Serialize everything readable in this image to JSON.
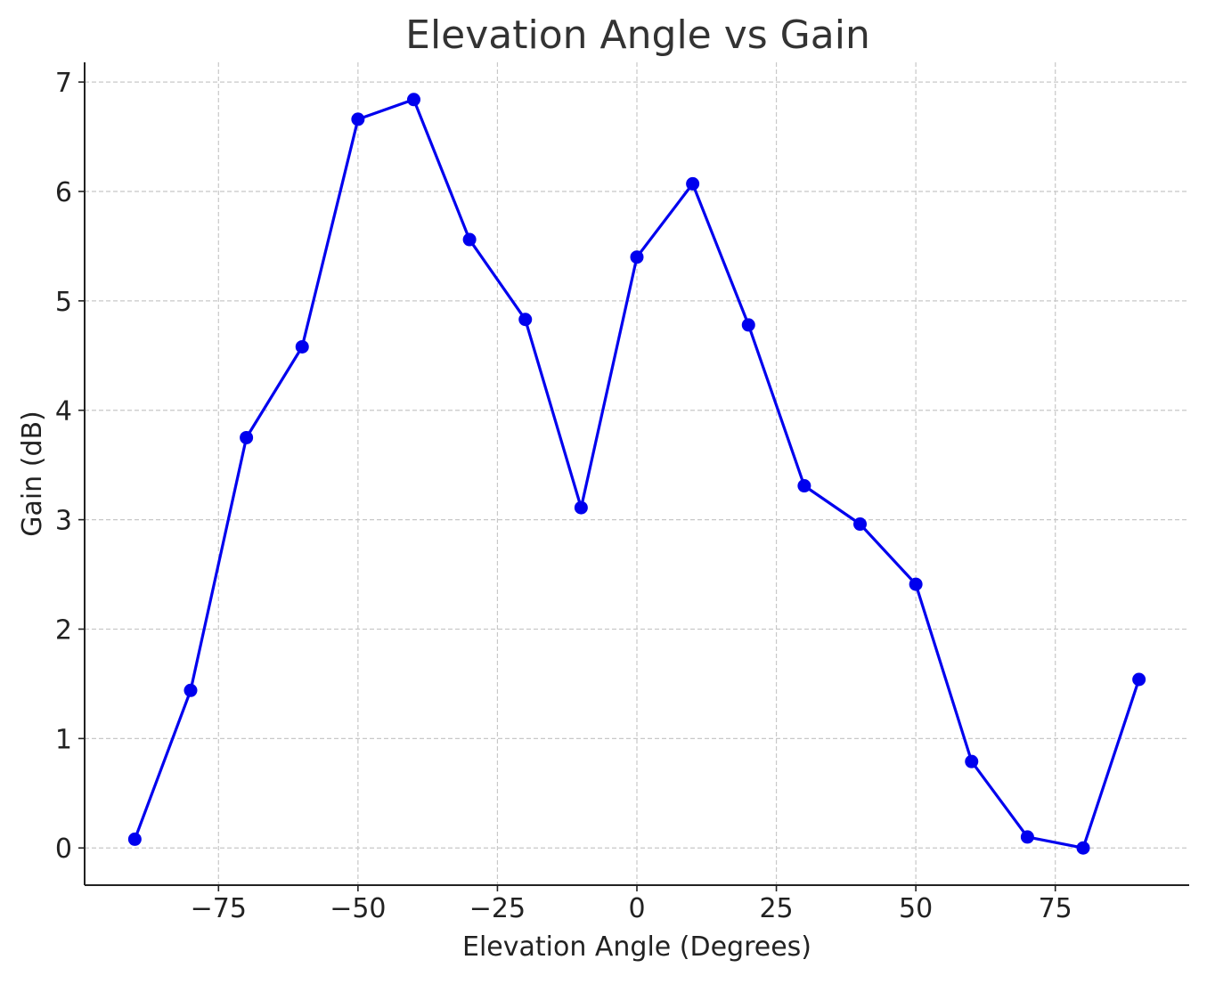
{
  "chart_data": {
    "type": "line",
    "title": "Elevation Angle vs Gain",
    "xlabel": "Elevation Angle (Degrees)",
    "ylabel": "Gain (dB)",
    "xlim": [
      -99,
      99
    ],
    "ylim": [
      -0.34,
      7.18
    ],
    "x_ticks": [
      -75,
      -50,
      -25,
      0,
      25,
      50,
      75
    ],
    "x_tick_labels": [
      "−75",
      "−50",
      "−25",
      "0",
      "25",
      "50",
      "75"
    ],
    "y_ticks": [
      0,
      1,
      2,
      3,
      4,
      5,
      6,
      7
    ],
    "y_tick_labels": [
      "0",
      "1",
      "2",
      "3",
      "4",
      "5",
      "6",
      "7"
    ],
    "grid": true,
    "line_color": "#0000ee",
    "series": [
      {
        "x": [
          -90,
          -80,
          -70,
          -60,
          -50,
          -40,
          -30,
          -20,
          -10,
          0,
          10,
          20,
          30,
          40,
          50,
          60,
          70,
          80,
          90
        ],
        "y": [
          0.08,
          1.44,
          3.75,
          4.58,
          6.66,
          6.84,
          5.56,
          4.83,
          3.11,
          5.4,
          6.07,
          4.78,
          3.31,
          2.96,
          2.41,
          0.79,
          0.1,
          0.0,
          1.54
        ]
      }
    ]
  }
}
